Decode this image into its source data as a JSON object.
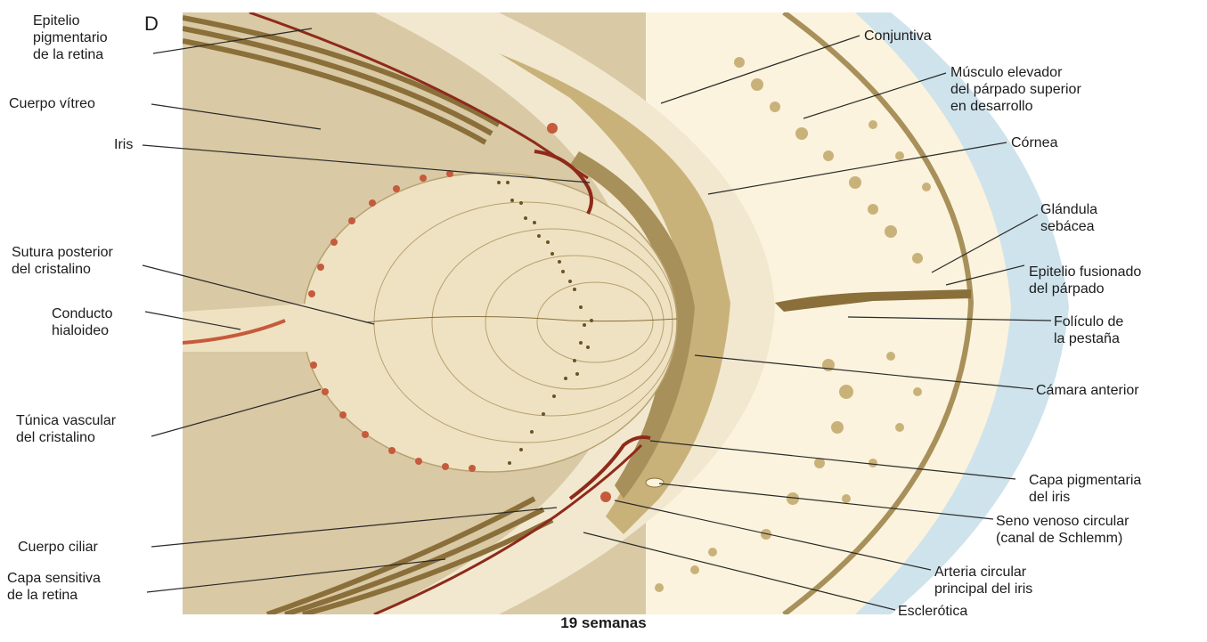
{
  "figure": {
    "panel_letter": "D",
    "caption": "19 semanas"
  },
  "labels": {
    "epitelio_pigmentario": "Epitelio\npigmentario\nde la retina",
    "cuerpo_vitreo": "Cuerpo vítreo",
    "iris": "Iris",
    "sutura_posterior": "Sutura posterior\ndel cristalino",
    "conducto_hialoideo": "Conducto\nhialoideo",
    "tunica_vascular": "Túnica vascular\ndel cristalino",
    "cuerpo_ciliar": "Cuerpo ciliar",
    "capa_sensitiva": "Capa sensitiva\nde la retina",
    "conjuntiva": "Conjuntiva",
    "musculo_elevador": "Músculo elevador\ndel párpado superior\nen desarrollo",
    "cornea": "Córnea",
    "glandula_sebacea": "Glándula\nsebácea",
    "epitelio_fusionado": "Epitelio fusionado\ndel párpado",
    "foliculo_pestana": "Folículo de\nla pestaña",
    "camara_anterior": "Cámara anterior",
    "capa_pigmentaria_iris": "Capa pigmentaria\ndel iris",
    "seno_venoso": "Seno venoso circular\n(canal de Schlemm)",
    "arteria_circular": "Arteria circular\nprincipal del iris",
    "esclerotica": "Esclerótica"
  },
  "colors": {
    "tissue_tan": "#d9c9a4",
    "tissue_light": "#f2e8cf",
    "cream": "#fbf3dd",
    "band_brown": "#a8905a",
    "dark_brown": "#6b5224",
    "pigment_red": "#8e2a1a",
    "vessel_red": "#c65a3c",
    "skin_blue": "#cfe3ec"
  }
}
